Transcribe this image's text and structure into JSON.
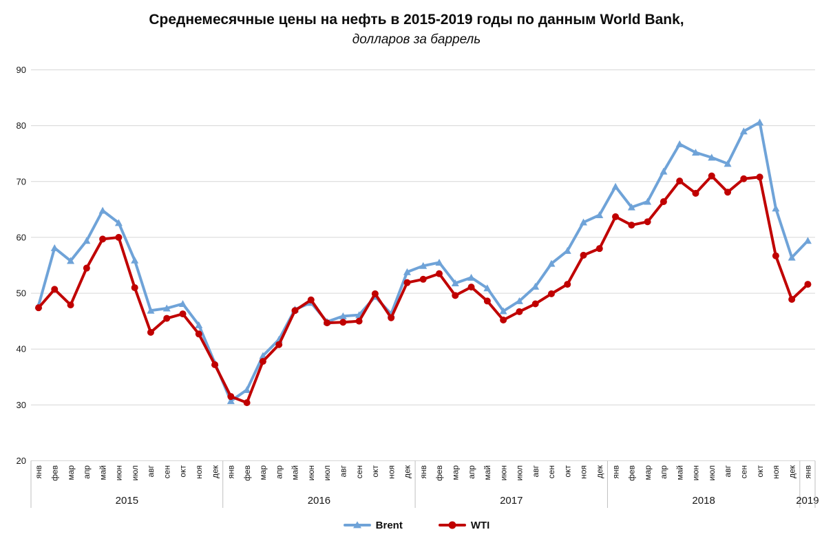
{
  "chart_data": {
    "type": "line",
    "title": "Среднемесячные цены на нефть в 2015-2019 годы по данным World Bank,",
    "subtitle": "долларов за баррель",
    "y_axis": {
      "min": 20,
      "max": 90,
      "step": 10,
      "grid": true
    },
    "x_categories": [
      "янв",
      "фев",
      "мар",
      "апр",
      "май",
      "июн",
      "июл",
      "авг",
      "сен",
      "окт",
      "ноя",
      "дек",
      "янв",
      "фев",
      "мар",
      "апр",
      "май",
      "июн",
      "июл",
      "авг",
      "сен",
      "окт",
      "ноя",
      "дек",
      "янв",
      "фев",
      "мар",
      "апр",
      "май",
      "июн",
      "июл",
      "авг",
      "сен",
      "окт",
      "ноя",
      "дек",
      "янв",
      "фев",
      "мар",
      "апр",
      "май",
      "июн",
      "июл",
      "авг",
      "сен",
      "окт",
      "ноя",
      "дек",
      "янв"
    ],
    "year_groups": [
      {
        "label": "2015",
        "months": 12
      },
      {
        "label": "2016",
        "months": 12
      },
      {
        "label": "2017",
        "months": 12
      },
      {
        "label": "2018",
        "months": 12
      },
      {
        "label": "2019",
        "months": 1
      }
    ],
    "legend_position": "bottom",
    "series": [
      {
        "name": "Brent",
        "color": "#6FA3D8",
        "marker": "triangle",
        "values": [
          47.8,
          58.1,
          55.8,
          59.4,
          64.8,
          62.6,
          55.9,
          46.9,
          47.3,
          48.1,
          44.3,
          37.5,
          30.7,
          32.7,
          38.8,
          41.7,
          47.1,
          48.3,
          44.9,
          45.9,
          46.1,
          49.4,
          46.3,
          53.8,
          54.9,
          55.5,
          51.8,
          52.8,
          50.9,
          46.8,
          48.6,
          51.2,
          55.3,
          57.6,
          62.7,
          64.0,
          69.1,
          65.4,
          66.4,
          71.8,
          76.7,
          75.2,
          74.3,
          73.2,
          79.0,
          80.6,
          65.2,
          56.4,
          59.4
        ]
      },
      {
        "name": "WTI",
        "color": "#C00000",
        "marker": "circle",
        "values": [
          47.4,
          50.7,
          47.9,
          54.5,
          59.7,
          60.0,
          51.0,
          43.0,
          45.5,
          46.3,
          42.7,
          37.2,
          31.5,
          30.4,
          37.8,
          40.8,
          46.9,
          48.8,
          44.7,
          44.8,
          45.0,
          49.9,
          45.6,
          51.9,
          52.5,
          53.5,
          49.6,
          51.1,
          48.6,
          45.2,
          46.7,
          48.1,
          49.9,
          51.6,
          56.8,
          58.0,
          63.7,
          62.2,
          62.8,
          66.4,
          70.1,
          67.9,
          71.0,
          68.1,
          70.5,
          70.8,
          56.7,
          48.9,
          51.6
        ]
      }
    ],
    "grid_color": "#D6D6D6",
    "separator_color": "#BFBFBF",
    "text_color": "#171717"
  }
}
